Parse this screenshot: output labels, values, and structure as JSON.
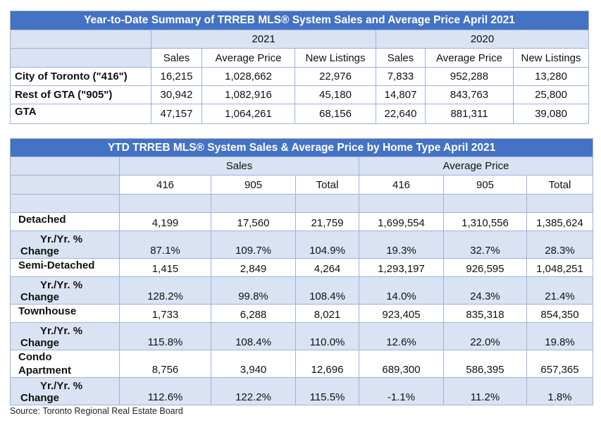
{
  "summary": {
    "title": "Year-to-Date Summary of TRREB MLS® System Sales and Average Price April 2021",
    "year_a": "2021",
    "year_b": "2020",
    "col_sales": "Sales",
    "col_avg_price": "Average Price",
    "col_new_listings": "New Listings",
    "rows": [
      {
        "label": "City of Toronto (\"416\")",
        "values": [
          "16,215",
          "1,028,662",
          "22,976",
          "7,833",
          "952,288",
          "13,280"
        ]
      },
      {
        "label": "Rest of GTA (\"905\")",
        "values": [
          "30,942",
          "1,082,916",
          "45,180",
          "14,807",
          "843,763",
          "25,800"
        ]
      },
      {
        "label": "GTA",
        "values": [
          "47,157",
          "1,064,261",
          "68,156",
          "22,640",
          "881,311",
          "39,080"
        ]
      }
    ]
  },
  "by_type": {
    "title": "YTD TRREB MLS® System Sales & Average Price by Home Type April 2021",
    "group_sales": "Sales",
    "group_avg_price": "Average Price",
    "sub_headers": [
      "416",
      "905",
      "Total",
      "416",
      "905",
      "Total"
    ],
    "change_label_1": "Yr./Yr. %",
    "change_label_2": "Change",
    "rows": [
      {
        "type_line1": "Detached",
        "type_line2": "",
        "values": [
          "4,199",
          "17,560",
          "21,759",
          "1,699,554",
          "1,310,556",
          "1,385,624"
        ],
        "change": [
          "87.1%",
          "109.7%",
          "104.9%",
          "19.3%",
          "32.7%",
          "28.3%"
        ]
      },
      {
        "type_line1": "Semi-Detached",
        "type_line2": "",
        "values": [
          "1,415",
          "2,849",
          "4,264",
          "1,293,197",
          "926,595",
          "1,048,251"
        ],
        "change": [
          "128.2%",
          "99.8%",
          "108.4%",
          "14.0%",
          "24.3%",
          "21.4%"
        ]
      },
      {
        "type_line1": "Townhouse",
        "type_line2": "",
        "values": [
          "1,733",
          "6,288",
          "8,021",
          "923,405",
          "835,318",
          "854,350"
        ],
        "change": [
          "115.8%",
          "108.4%",
          "110.0%",
          "12.6%",
          "22.0%",
          "19.8%"
        ]
      },
      {
        "type_line1": "Condo",
        "type_line2": "Apartment",
        "values": [
          "8,756",
          "3,940",
          "12,696",
          "689,300",
          "586,395",
          "657,365"
        ],
        "change": [
          "112.6%",
          "122.2%",
          "115.5%",
          "-1.1%",
          "11.2%",
          "1.8%"
        ]
      }
    ]
  },
  "source": "Source: Toronto Regional Real Estate Board"
}
